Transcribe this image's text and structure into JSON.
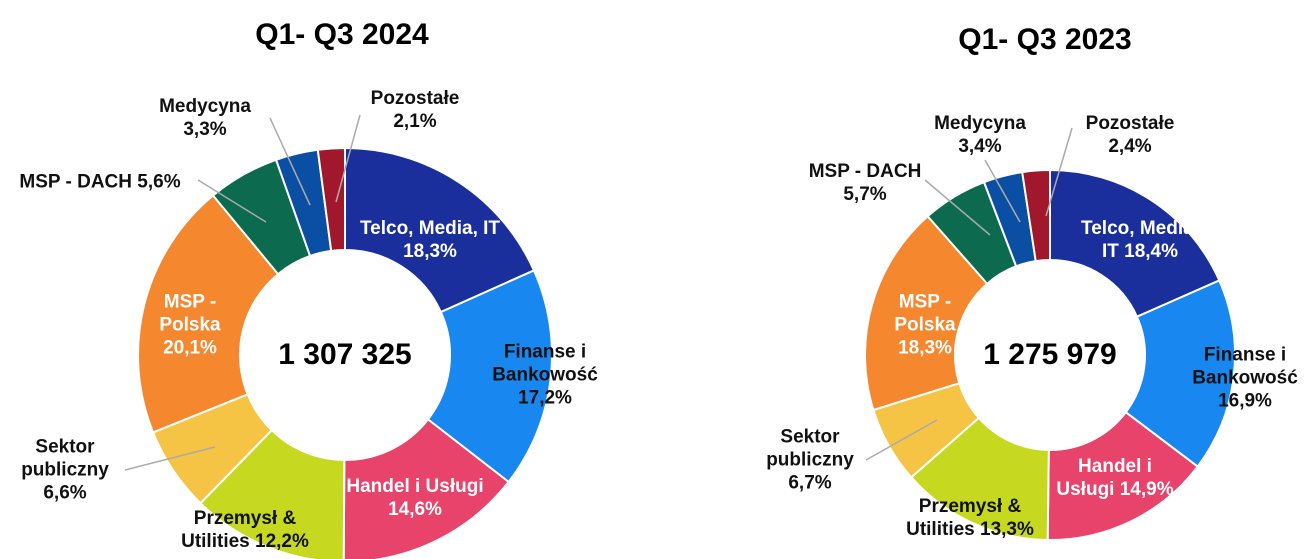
{
  "chart_data": [
    {
      "type": "pie",
      "title": "Q1- Q3 2024",
      "center_label": "1 307 325",
      "categories": [
        "Telco, Media, IT",
        "Finanse i Bankowość",
        "Handel i Usługi",
        "Przemysł & Utilities",
        "Sektor publiczny",
        "MSP - Polska",
        "MSP - DACH",
        "Medycyna",
        "Pozostałe"
      ],
      "values": [
        18.3,
        17.2,
        14.6,
        12.2,
        6.6,
        20.1,
        5.6,
        3.3,
        2.1
      ],
      "value_labels": [
        "18,3%",
        "17,2%",
        "14,6%",
        "12,2%",
        "6,6%",
        "20,1%",
        "5,6%",
        "3,3%",
        "2,1%"
      ],
      "colors": [
        "#1b2f9c",
        "#1987f0",
        "#e8436a",
        "#c6d81f",
        "#f6c445",
        "#f5872f",
        "#0c6a4e",
        "#0b4fa5",
        "#a1182d"
      ]
    },
    {
      "type": "pie",
      "title": "Q1- Q3 2023",
      "center_label": "1 275 979",
      "categories": [
        "Telco, Media, IT",
        "Finanse i Bankowość",
        "Handel i Usługi",
        "Przemysł & Utilities",
        "Sektor publiczny",
        "MSP - Polska",
        "MSP - DACH",
        "Medycyna",
        "Pozostałe"
      ],
      "values": [
        18.4,
        16.9,
        14.9,
        13.3,
        6.7,
        18.3,
        5.7,
        3.4,
        2.4
      ],
      "value_labels": [
        "18,4%",
        "16,9%",
        "14,9%",
        "13,3%",
        "6,7%",
        "18,3%",
        "5,7%",
        "3,4%",
        "2,4%"
      ],
      "colors": [
        "#1b2f9c",
        "#1987f0",
        "#e8436a",
        "#c6d81f",
        "#f6c445",
        "#f5872f",
        "#0c6a4e",
        "#0b4fa5",
        "#a1182d"
      ]
    }
  ]
}
